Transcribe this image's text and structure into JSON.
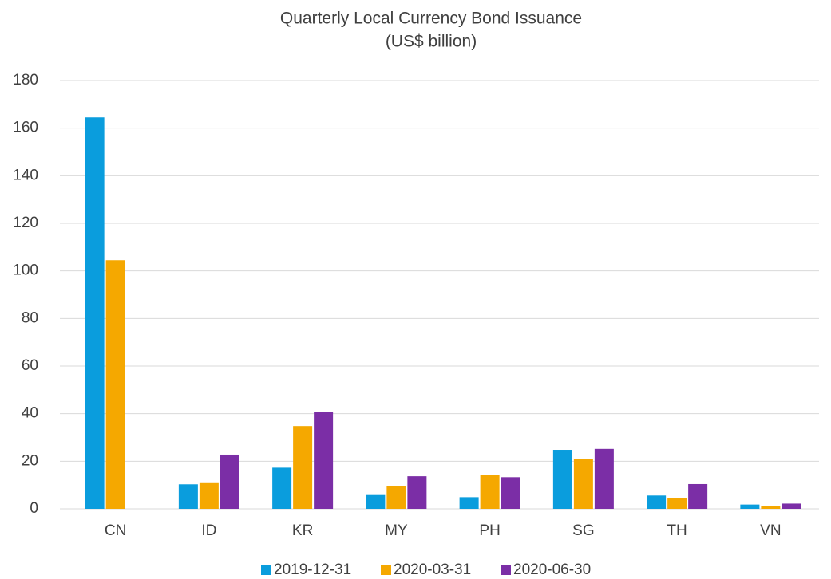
{
  "chart_data": {
    "type": "bar",
    "title": "Quarterly Local Currency Bond Issuance",
    "subtitle": "(US$ billion)",
    "categories": [
      "CN",
      "ID",
      "KR",
      "MY",
      "PH",
      "SG",
      "TH",
      "VN"
    ],
    "series": [
      {
        "name": "2019-12-31",
        "color": "#0a9ddd",
        "values": [
          164.5,
          10.3,
          17.3,
          5.8,
          4.9,
          24.8,
          5.6,
          1.8
        ]
      },
      {
        "name": "2020-03-31",
        "color": "#f5a800",
        "values": [
          104.5,
          10.8,
          34.8,
          9.6,
          14.1,
          21.0,
          4.4,
          1.3
        ]
      },
      {
        "name": "2020-06-30",
        "color": "#7b2ea6",
        "values": [
          null,
          22.8,
          40.7,
          13.7,
          13.3,
          25.2,
          10.4,
          2.2
        ]
      }
    ],
    "ylim": [
      0,
      180
    ],
    "yticks": [
      0,
      20,
      40,
      60,
      80,
      100,
      120,
      140,
      160,
      180
    ],
    "grid": true,
    "legend": "bottom"
  }
}
